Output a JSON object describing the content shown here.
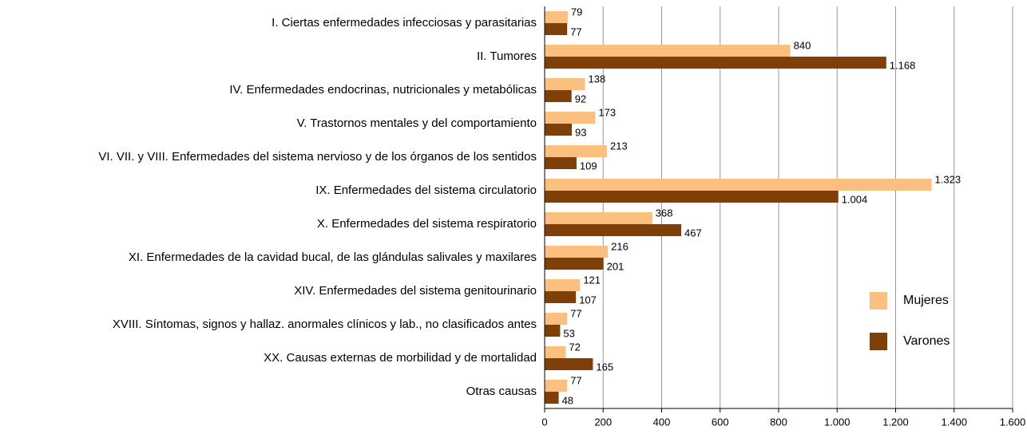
{
  "chart_data": {
    "type": "barh",
    "categories": [
      "I. Ciertas enfermedades infecciosas y parasitarias",
      "II. Tumores",
      "IV. Enfermedades endocrinas, nutricionales y metabólicas",
      "V. Trastornos mentales y del comportamiento",
      "VI. VII. y VIII. Enfermedades del sistema nervioso y de los órganos de los sentidos",
      "IX. Enfermedades del sistema circulatorio",
      "X. Enfermedades del sistema respiratorio",
      "XI. Enfermedades de la cavidad bucal, de las glándulas salivales y maxilares",
      "XIV. Enfermedades del sistema genitourinario",
      "XVIII. Síntomas, signos y hallaz. anormales clínicos y lab., no clasificados antes",
      "XX. Causas externas de morbilidad y de mortalidad",
      "Otras causas"
    ],
    "series": [
      {
        "name": "Mujeres",
        "color": "#FBBF80",
        "values": [
          79,
          840,
          138,
          173,
          213,
          1323,
          368,
          216,
          121,
          77,
          72,
          77
        ],
        "value_labels": [
          "79",
          "840",
          "138",
          "173",
          "213",
          "1.323",
          "368",
          "216",
          "121",
          "77",
          "72",
          "77"
        ]
      },
      {
        "name": "Varones",
        "color": "#7F3F08",
        "values": [
          77,
          1168,
          92,
          93,
          109,
          1004,
          467,
          201,
          107,
          53,
          165,
          48
        ],
        "value_labels": [
          "77",
          "1.168",
          "92",
          "93",
          "109",
          "1.004",
          "467",
          "201",
          "107",
          "53",
          "165",
          "48"
        ]
      }
    ],
    "xlim": [
      0,
      1600
    ],
    "xticks": [
      0,
      200,
      400,
      600,
      800,
      {
        "value": 1000,
        "label": "1.000"
      },
      {
        "value": 1200,
        "label": "1.200"
      },
      {
        "value": 1400,
        "label": "1.400"
      },
      {
        "value": 1600,
        "label": "1.600"
      }
    ],
    "grid": true,
    "legend": "right"
  }
}
